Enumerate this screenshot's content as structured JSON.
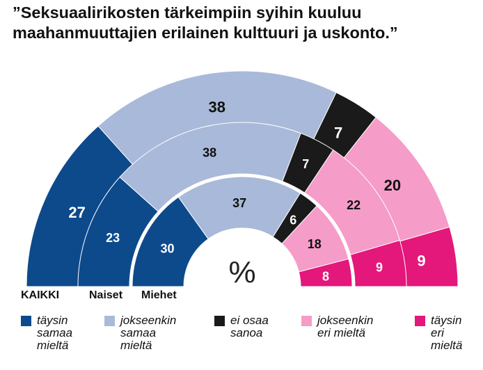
{
  "title": {
    "line1": "”Seksuaalirikosten tärkeimpiin syihin kuuluu",
    "line2": "maahanmuuttajien erilainen kulttuuri ja uskonto.”"
  },
  "center_symbol": "%",
  "colors": {
    "taysin_samaa": "#0d4a8c",
    "jokseenkin_samaa": "#a9b9d9",
    "ei_osaa": "#1a1a1a",
    "jokseenkin_eri": "#f59cc8",
    "taysin_eri": "#e4177a"
  },
  "rings": [
    {
      "name": "KAIKKI"
    },
    {
      "name": "Naiset"
    },
    {
      "name": "Miehet"
    }
  ],
  "legend": [
    {
      "key": "taysin_samaa",
      "lines": [
        "täysin",
        "samaa",
        "mieltä"
      ]
    },
    {
      "key": "jokseenkin_samaa",
      "lines": [
        "jokseenkin",
        "samaa",
        "mieltä"
      ]
    },
    {
      "key": "ei_osaa",
      "lines": [
        "ei osaa",
        "sanoa"
      ]
    },
    {
      "key": "jokseenkin_eri",
      "lines": [
        "jokseenkin",
        "eri mieltä"
      ]
    },
    {
      "key": "taysin_eri",
      "lines": [
        "täysin",
        "eri",
        "mieltä"
      ]
    }
  ],
  "chart_data": {
    "type": "semicircular stacked donut",
    "unit": "%",
    "categories": [
      "KAIKKI",
      "Naiset",
      "Miehet"
    ],
    "series": [
      {
        "name": "täysin samaa mieltä",
        "values": [
          27,
          23,
          30
        ]
      },
      {
        "name": "jokseenkin samaa mieltä",
        "values": [
          38,
          38,
          37
        ]
      },
      {
        "name": "ei osaa sanoa",
        "values": [
          7,
          7,
          6
        ]
      },
      {
        "name": "jokseenkin eri mieltä",
        "values": [
          20,
          22,
          18
        ]
      },
      {
        "name": "täysin eri mieltä",
        "values": [
          9,
          9,
          8
        ]
      }
    ],
    "label_colors": [
      "#ffffff",
      "#111111",
      "#ffffff",
      "#111111",
      "#ffffff"
    ]
  }
}
